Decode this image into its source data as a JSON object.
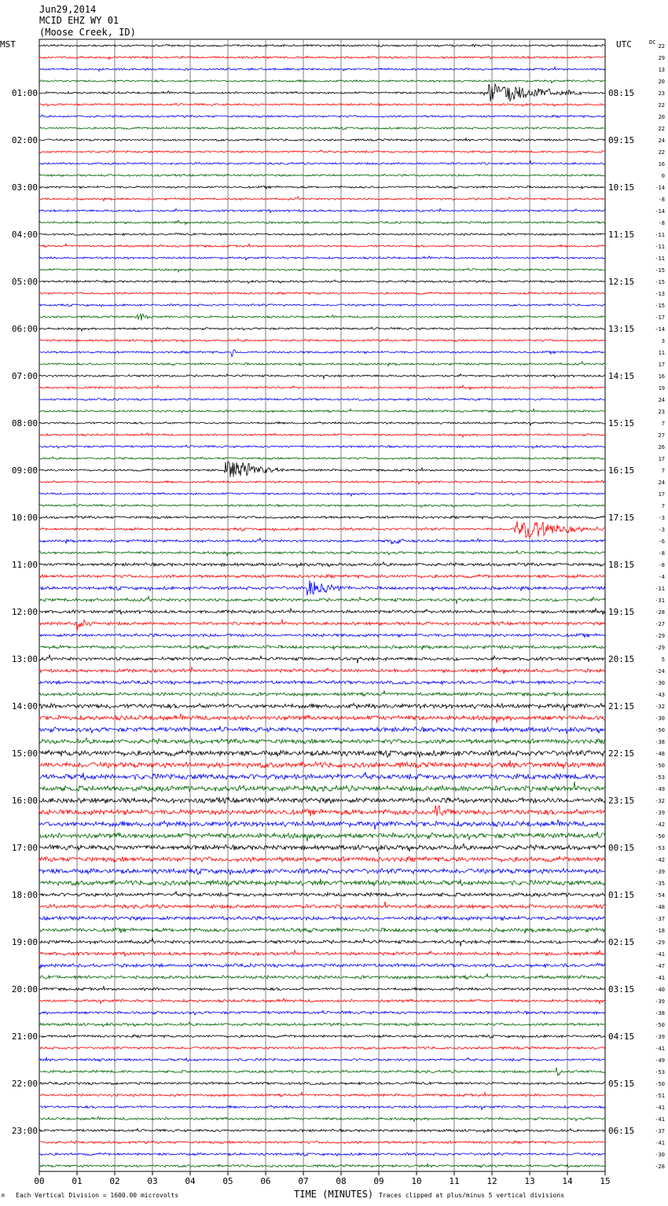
{
  "header": {
    "date": "Jun29,2014",
    "station": "MCID EHZ WY 01",
    "location": "(Moose Creek, ID)"
  },
  "left_tz": "MST",
  "right_tz": "UTC",
  "dc_label": "DC",
  "footer": {
    "mark": "M",
    "scale": "Each Vertical Division = 1600.00 microvolts",
    "xlabel": "TIME (MINUTES)",
    "clip": "Traces clipped at plus/minus 5 vertical divisions"
  },
  "colors": {
    "trace_cycle": [
      "#000000",
      "#ff0000",
      "#0000ff",
      "#006400"
    ],
    "grid": "#808080"
  },
  "chart_data": {
    "type": "line",
    "title": "",
    "xlabel": "TIME (MINUTES)",
    "x_ticks": [
      "00",
      "01",
      "02",
      "03",
      "04",
      "05",
      "06",
      "07",
      "08",
      "09",
      "10",
      "11",
      "12",
      "13",
      "14",
      "15"
    ],
    "xlim": [
      0,
      15
    ],
    "left_hour_labels": [
      "01:00",
      "02:00",
      "03:00",
      "04:00",
      "05:00",
      "06:00",
      "07:00",
      "08:00",
      "09:00",
      "10:00",
      "11:00",
      "12:00",
      "13:00",
      "14:00",
      "15:00",
      "16:00",
      "17:00",
      "18:00",
      "19:00",
      "20:00",
      "21:00",
      "22:00",
      "23:00"
    ],
    "right_hour_labels": [
      "08:15",
      "09:15",
      "10:15",
      "11:15",
      "12:15",
      "13:15",
      "14:15",
      "15:15",
      "16:15",
      "17:15",
      "18:15",
      "19:15",
      "20:15",
      "21:15",
      "22:15",
      "23:15",
      "00:15",
      "01:15",
      "02:15",
      "03:15",
      "04:15",
      "05:15",
      "06:15"
    ],
    "dc_offsets": [
      22,
      29,
      13,
      20,
      23,
      22,
      20,
      22,
      24,
      22,
      16,
      0,
      -14,
      -8,
      -14,
      -8,
      -11,
      -11,
      -11,
      -15,
      -15,
      -13,
      -15,
      -17,
      -14,
      3,
      11,
      17,
      16,
      19,
      24,
      23,
      7,
      27,
      26,
      17,
      7,
      24,
      17,
      7,
      -3,
      -3,
      -6,
      -8,
      -8,
      -4,
      -11,
      -31,
      -28,
      -27,
      -29,
      -29,
      5,
      -24,
      -30,
      -43,
      -32,
      -30,
      -50,
      -38,
      -48,
      -50,
      -53,
      -49,
      -32,
      -39,
      -42,
      -50,
      -53,
      -42,
      -39,
      -35,
      -54,
      -48,
      -37,
      -18,
      -29,
      -41,
      -47,
      -41,
      -40,
      -39,
      -38,
      -50,
      -39,
      -41,
      -49,
      -53,
      -50,
      -51,
      -41,
      -41,
      -37,
      -41,
      -30,
      -28
    ],
    "traces_per_hour": 4,
    "noise_by_hour": [
      1,
      1,
      1,
      1,
      1,
      1,
      1,
      1,
      1,
      1,
      1.2,
      1.5,
      1.5,
      1.6,
      2.2,
      2.6,
      2.5,
      2.3,
      1.8,
      1.6,
      1.3,
      1.2,
      1.2,
      1.2
    ],
    "events": [
      {
        "row": 4,
        "minute": 11.9,
        "amplitude": 4,
        "duration": 2.5
      },
      {
        "row": 36,
        "minute": 4.9,
        "amplitude": 4,
        "duration": 1.6
      },
      {
        "row": 41,
        "minute": 12.6,
        "amplitude": 4,
        "duration": 2.2
      },
      {
        "row": 42,
        "minute": 9.3,
        "amplitude": 1.5,
        "duration": 0.4
      },
      {
        "row": 46,
        "minute": 7.1,
        "amplitude": 2.5,
        "duration": 1.2
      },
      {
        "row": 49,
        "minute": 1.0,
        "amplitude": 1.5,
        "duration": 0.6
      },
      {
        "row": 65,
        "minute": 10.5,
        "amplitude": 3,
        "duration": 0.5
      },
      {
        "row": 23,
        "minute": 2.6,
        "amplitude": 1.5,
        "duration": 0.4
      },
      {
        "row": 26,
        "minute": 5.1,
        "amplitude": 1.5,
        "duration": 0.2
      },
      {
        "row": 87,
        "minute": 13.7,
        "amplitude": 2,
        "duration": 0.2
      }
    ]
  }
}
